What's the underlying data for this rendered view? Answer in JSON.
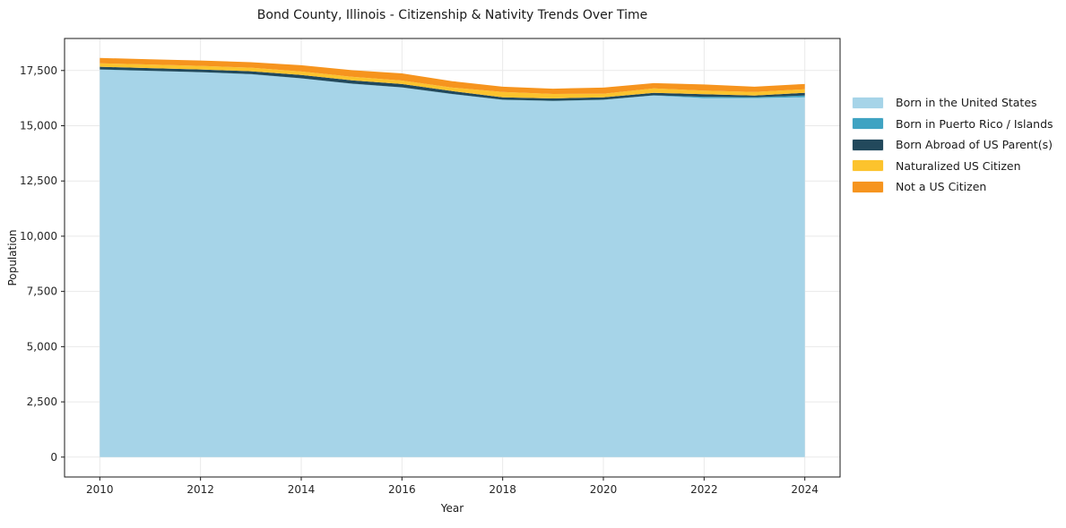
{
  "figure": {
    "title": "Bond County, Illinois - Citizenship & Nativity Trends Over Time",
    "xlabel": "Year",
    "ylabel": "Population"
  },
  "chart_data": {
    "type": "area",
    "stacked": true,
    "title": "Bond County, Illinois - Citizenship & Nativity Trends Over Time",
    "xlabel": "Year",
    "ylabel": "Population",
    "x": [
      2010,
      2011,
      2012,
      2013,
      2014,
      2015,
      2016,
      2017,
      2018,
      2019,
      2020,
      2021,
      2022,
      2023,
      2024
    ],
    "series": [
      {
        "name": "Born in the United States",
        "color": "#a6d4e8",
        "values": [
          17540,
          17480,
          17420,
          17330,
          17140,
          16900,
          16730,
          16430,
          16170,
          16120,
          16170,
          16370,
          16250,
          16250,
          16290
        ]
      },
      {
        "name": "Born in Puerto Rico / Islands",
        "color": "#3fa3c2",
        "values": [
          8,
          8,
          8,
          8,
          8,
          8,
          8,
          8,
          8,
          8,
          8,
          10,
          60,
          40,
          80
        ]
      },
      {
        "name": "Born Abroad of US Parent(s)",
        "color": "#22495c",
        "values": [
          120,
          120,
          120,
          130,
          150,
          150,
          150,
          130,
          110,
          110,
          110,
          110,
          120,
          80,
          120
        ]
      },
      {
        "name": "Naturalized US Citizen",
        "color": "#fcc32d",
        "values": [
          160,
          160,
          160,
          160,
          160,
          160,
          160,
          160,
          240,
          200,
          160,
          200,
          160,
          160,
          160
        ]
      },
      {
        "name": "Not a US Citizen",
        "color": "#f6941e",
        "values": [
          240,
          240,
          245,
          250,
          280,
          300,
          320,
          290,
          240,
          240,
          280,
          240,
          280,
          240,
          240
        ]
      }
    ],
    "xlim": [
      2009.3,
      2024.7
    ],
    "ylim": [
      -900,
      18950
    ],
    "xticks": {
      "values": [
        2010,
        2012,
        2014,
        2016,
        2018,
        2020,
        2022,
        2024
      ],
      "labels": [
        "2010",
        "2012",
        "2014",
        "2016",
        "2018",
        "2020",
        "2022",
        "2024"
      ]
    },
    "yticks": {
      "values": [
        0,
        2500,
        5000,
        7500,
        10000,
        12500,
        15000,
        17500
      ],
      "labels": [
        "0",
        "2,500",
        "5,000",
        "7,500",
        "10,000",
        "12,500",
        "15,000",
        "17,500"
      ]
    },
    "grid": true,
    "legend_position": "right-outside",
    "style": {
      "grid_color": "#e9e9e9",
      "spine_color": "#1a1a1a",
      "tick_color": "#1a1a1a",
      "background": "#ffffff"
    }
  }
}
